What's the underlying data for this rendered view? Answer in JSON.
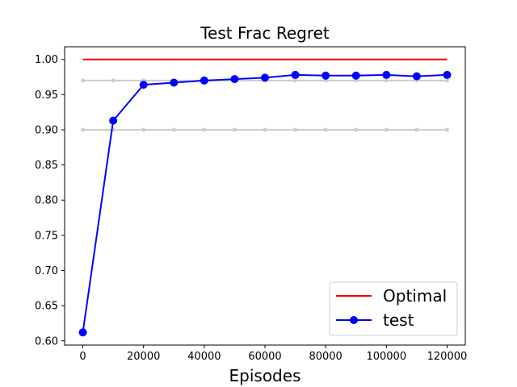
{
  "chart_data": {
    "type": "line",
    "title": "Test Frac Regret",
    "xlabel": "Episodes",
    "ylabel": "",
    "xlim": [
      -6000,
      126000
    ],
    "ylim": [
      0.594,
      1.018
    ],
    "xticks": [
      0,
      20000,
      40000,
      60000,
      80000,
      100000,
      120000
    ],
    "yticks": [
      0.6,
      0.65,
      0.7,
      0.75,
      0.8,
      0.85,
      0.9,
      0.95,
      1.0
    ],
    "x": [
      0,
      10000,
      20000,
      30000,
      40000,
      50000,
      60000,
      70000,
      80000,
      90000,
      100000,
      110000,
      120000
    ],
    "series": [
      {
        "name": "Optimal",
        "color": "#ff0000",
        "marker": "none",
        "x": [
          0,
          120000
        ],
        "values": [
          1.0,
          1.0
        ]
      },
      {
        "name": "test",
        "color": "#0000ff",
        "marker": "circle",
        "values": [
          0.612,
          0.913,
          0.964,
          0.967,
          0.97,
          0.972,
          0.974,
          0.978,
          0.977,
          0.977,
          0.978,
          0.976,
          0.978
        ]
      }
    ],
    "reference_series": [
      {
        "color": "#cccccc",
        "values": [
          0.97,
          0.97,
          0.97,
          0.97,
          0.97,
          0.97,
          0.97,
          0.97,
          0.97,
          0.97,
          0.97,
          0.97,
          0.97
        ]
      },
      {
        "color": "#cccccc",
        "values": [
          0.9,
          0.9,
          0.9,
          0.9,
          0.9,
          0.9,
          0.9,
          0.9,
          0.9,
          0.9,
          0.9,
          0.9,
          0.9
        ]
      }
    ],
    "legend_position": "bottom-right",
    "grid": false
  }
}
